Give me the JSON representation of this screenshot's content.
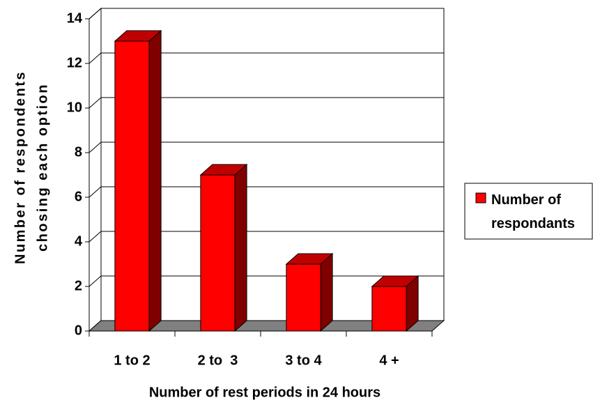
{
  "chart_data": {
    "type": "bar3d",
    "xlabel": "Number of rest periods in 24 hours",
    "ylabel": [
      "Number of respondents",
      "chosing each option"
    ],
    "categories": [
      "1 to 2",
      "2 to  3",
      "3 to 4",
      "4 +"
    ],
    "series": [
      {
        "name": "Number of respondants",
        "color": "#ff0000",
        "values": [
          13,
          7,
          3,
          2
        ]
      }
    ],
    "ylim": [
      0,
      14
    ],
    "yticks": [
      0,
      2,
      4,
      6,
      8,
      10,
      12,
      14
    ],
    "grid": true,
    "legend": "right"
  }
}
